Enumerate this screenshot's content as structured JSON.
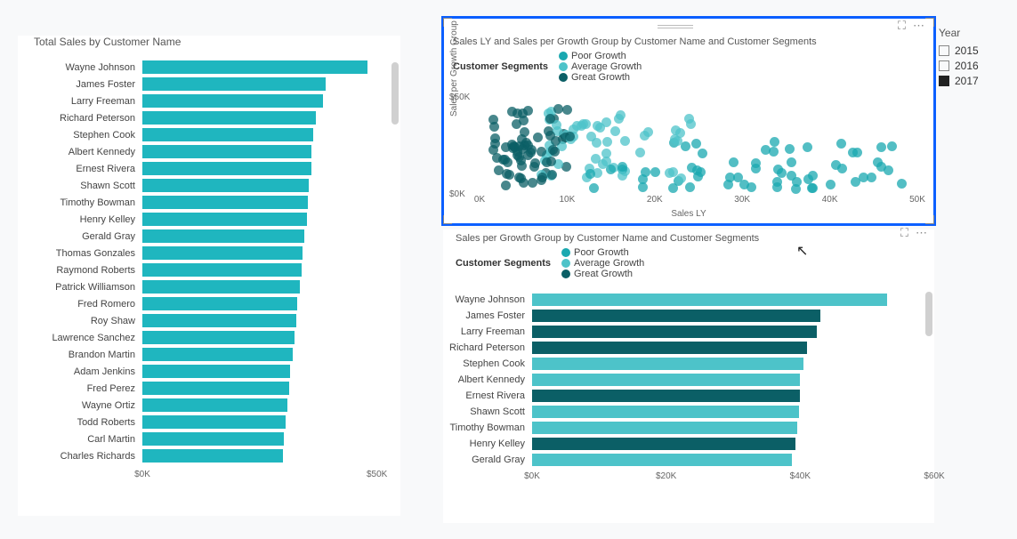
{
  "colors": {
    "primary_teal": "#1fb6bf",
    "poor_growth": "#1aa8b0",
    "average_growth": "#4dc3c9",
    "great_growth": "#0b5f66",
    "selection_border": "#0b5fff",
    "background": "#ffffff",
    "grid": "#e5e5e5",
    "text": "#444444"
  },
  "year_slicer": {
    "title": "Year",
    "options": [
      {
        "label": "2015",
        "selected": false
      },
      {
        "label": "2016",
        "selected": false
      },
      {
        "label": "2017",
        "selected": true
      }
    ]
  },
  "left_chart": {
    "type": "bar",
    "title": "Total Sales by Customer Name",
    "xlim": [
      0,
      55000
    ],
    "xticks": [
      {
        "pos": 0,
        "label": "$0K"
      },
      {
        "pos": 50000,
        "label": "$50K"
      }
    ],
    "bar_color": "#1fb6bf",
    "title_fontsize": 12,
    "label_fontsize": 11,
    "rows": [
      {
        "name": "Wayne Johnson",
        "value": 48000
      },
      {
        "name": "James Foster",
        "value": 39000
      },
      {
        "name": "Larry Freeman",
        "value": 38500
      },
      {
        "name": "Richard Peterson",
        "value": 37000
      },
      {
        "name": "Stephen Cook",
        "value": 36500
      },
      {
        "name": "Albert Kennedy",
        "value": 36000
      },
      {
        "name": "Ernest Rivera",
        "value": 36000
      },
      {
        "name": "Shawn Scott",
        "value": 35500
      },
      {
        "name": "Timothy Bowman",
        "value": 35200
      },
      {
        "name": "Henry Kelley",
        "value": 35000
      },
      {
        "name": "Gerald Gray",
        "value": 34500
      },
      {
        "name": "Thomas Gonzales",
        "value": 34200
      },
      {
        "name": "Raymond Roberts",
        "value": 34000
      },
      {
        "name": "Patrick Williamson",
        "value": 33500
      },
      {
        "name": "Fred Romero",
        "value": 33000
      },
      {
        "name": "Roy Shaw",
        "value": 32800
      },
      {
        "name": "Lawrence Sanchez",
        "value": 32500
      },
      {
        "name": "Brandon Martin",
        "value": 32000
      },
      {
        "name": "Adam Jenkins",
        "value": 31500
      },
      {
        "name": "Fred Perez",
        "value": 31200
      },
      {
        "name": "Wayne Ortiz",
        "value": 31000
      },
      {
        "name": "Todd Roberts",
        "value": 30500
      },
      {
        "name": "Carl Martin",
        "value": 30200
      },
      {
        "name": "Charles Richards",
        "value": 30000
      }
    ]
  },
  "scatter_chart": {
    "type": "scatter",
    "title": "Sales LY and Sales per Growth Group by Customer Name and Customer Segments",
    "legend_title": "Customer Segments",
    "legend_items": [
      {
        "label": "Poor Growth",
        "color": "#1aa8b0"
      },
      {
        "label": "Average Growth",
        "color": "#4dc3c9"
      },
      {
        "label": "Great Growth",
        "color": "#0b5f66"
      }
    ],
    "xlim": [
      0,
      50000
    ],
    "ylim": [
      0,
      55000
    ],
    "xticks": [
      {
        "pos": 0,
        "label": "0K"
      },
      {
        "pos": 10000,
        "label": "10K"
      },
      {
        "pos": 20000,
        "label": "20K"
      },
      {
        "pos": 30000,
        "label": "30K"
      },
      {
        "pos": 40000,
        "label": "40K"
      },
      {
        "pos": 50000,
        "label": "50K"
      }
    ],
    "yticks": [
      {
        "pos": 0,
        "label": "$0K"
      },
      {
        "pos": 50000,
        "label": "$50K"
      }
    ],
    "x_title": "Sales LY",
    "y_title": "Sales per Growth Group",
    "marker_size": 11,
    "marker_opacity": 0.75,
    "n_points": 180,
    "seed": 7
  },
  "right_chart": {
    "type": "bar",
    "title": "Sales per Growth Group by Customer Name and Customer Segments",
    "legend_title": "Customer Segments",
    "legend_items": [
      {
        "label": "Poor Growth",
        "color": "#1aa8b0"
      },
      {
        "label": "Average Growth",
        "color": "#4dc3c9"
      },
      {
        "label": "Great Growth",
        "color": "#0b5f66"
      }
    ],
    "xlim": [
      0,
      60000
    ],
    "xticks": [
      {
        "pos": 0,
        "label": "$0K"
      },
      {
        "pos": 20000,
        "label": "$20K"
      },
      {
        "pos": 40000,
        "label": "$40K"
      },
      {
        "pos": 60000,
        "label": "$60K"
      }
    ],
    "rows": [
      {
        "name": "Wayne Johnson",
        "value": 53000,
        "segment": "Average Growth"
      },
      {
        "name": "James Foster",
        "value": 43000,
        "segment": "Great Growth"
      },
      {
        "name": "Larry Freeman",
        "value": 42500,
        "segment": "Great Growth"
      },
      {
        "name": "Richard Peterson",
        "value": 41000,
        "segment": "Great Growth"
      },
      {
        "name": "Stephen Cook",
        "value": 40500,
        "segment": "Average Growth"
      },
      {
        "name": "Albert Kennedy",
        "value": 40000,
        "segment": "Average Growth"
      },
      {
        "name": "Ernest Rivera",
        "value": 40000,
        "segment": "Great Growth"
      },
      {
        "name": "Shawn Scott",
        "value": 39800,
        "segment": "Average Growth"
      },
      {
        "name": "Timothy Bowman",
        "value": 39600,
        "segment": "Average Growth"
      },
      {
        "name": "Henry Kelley",
        "value": 39300,
        "segment": "Great Growth"
      },
      {
        "name": "Gerald Gray",
        "value": 38800,
        "segment": "Average Growth"
      }
    ]
  }
}
